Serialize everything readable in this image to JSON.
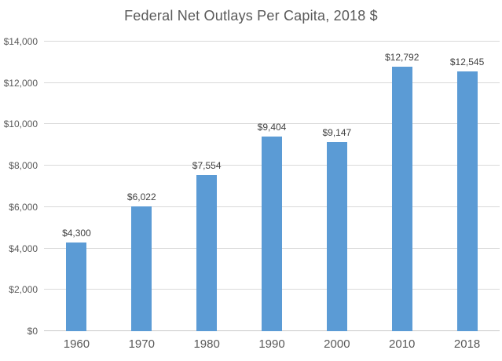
{
  "chart_data": {
    "type": "bar",
    "title": "Federal Net Outlays Per Capita, 2018 $",
    "categories": [
      "1960",
      "1970",
      "1980",
      "1990",
      "2000",
      "2010",
      "2018"
    ],
    "values": [
      4300,
      6022,
      7554,
      9404,
      9147,
      12792,
      12545
    ],
    "data_labels": [
      "$4,300",
      "$6,022",
      "$7,554",
      "$9,404",
      "$9,147",
      "$12,792",
      "$12,545"
    ],
    "xlabel": "",
    "ylabel": "",
    "ylim": [
      0,
      14000
    ],
    "y_ticks": [
      {
        "value": 0,
        "label": "$0"
      },
      {
        "value": 2000,
        "label": "$2,000"
      },
      {
        "value": 4000,
        "label": "$4,000"
      },
      {
        "value": 6000,
        "label": "$6,000"
      },
      {
        "value": 8000,
        "label": "$8,000"
      },
      {
        "value": 10000,
        "label": "$10,000"
      },
      {
        "value": 12000,
        "label": "$12,000"
      },
      {
        "value": 14000,
        "label": "$14,000"
      }
    ],
    "grid": true,
    "legend": "none",
    "colors": {
      "bar": "#5B9BD5",
      "gridline": "#D9D9D9",
      "axis_line": "#C8C8C8",
      "title_text": "#595959",
      "tick_text": "#595959",
      "data_label_text": "#404040",
      "background": "#FFFFFF"
    }
  }
}
